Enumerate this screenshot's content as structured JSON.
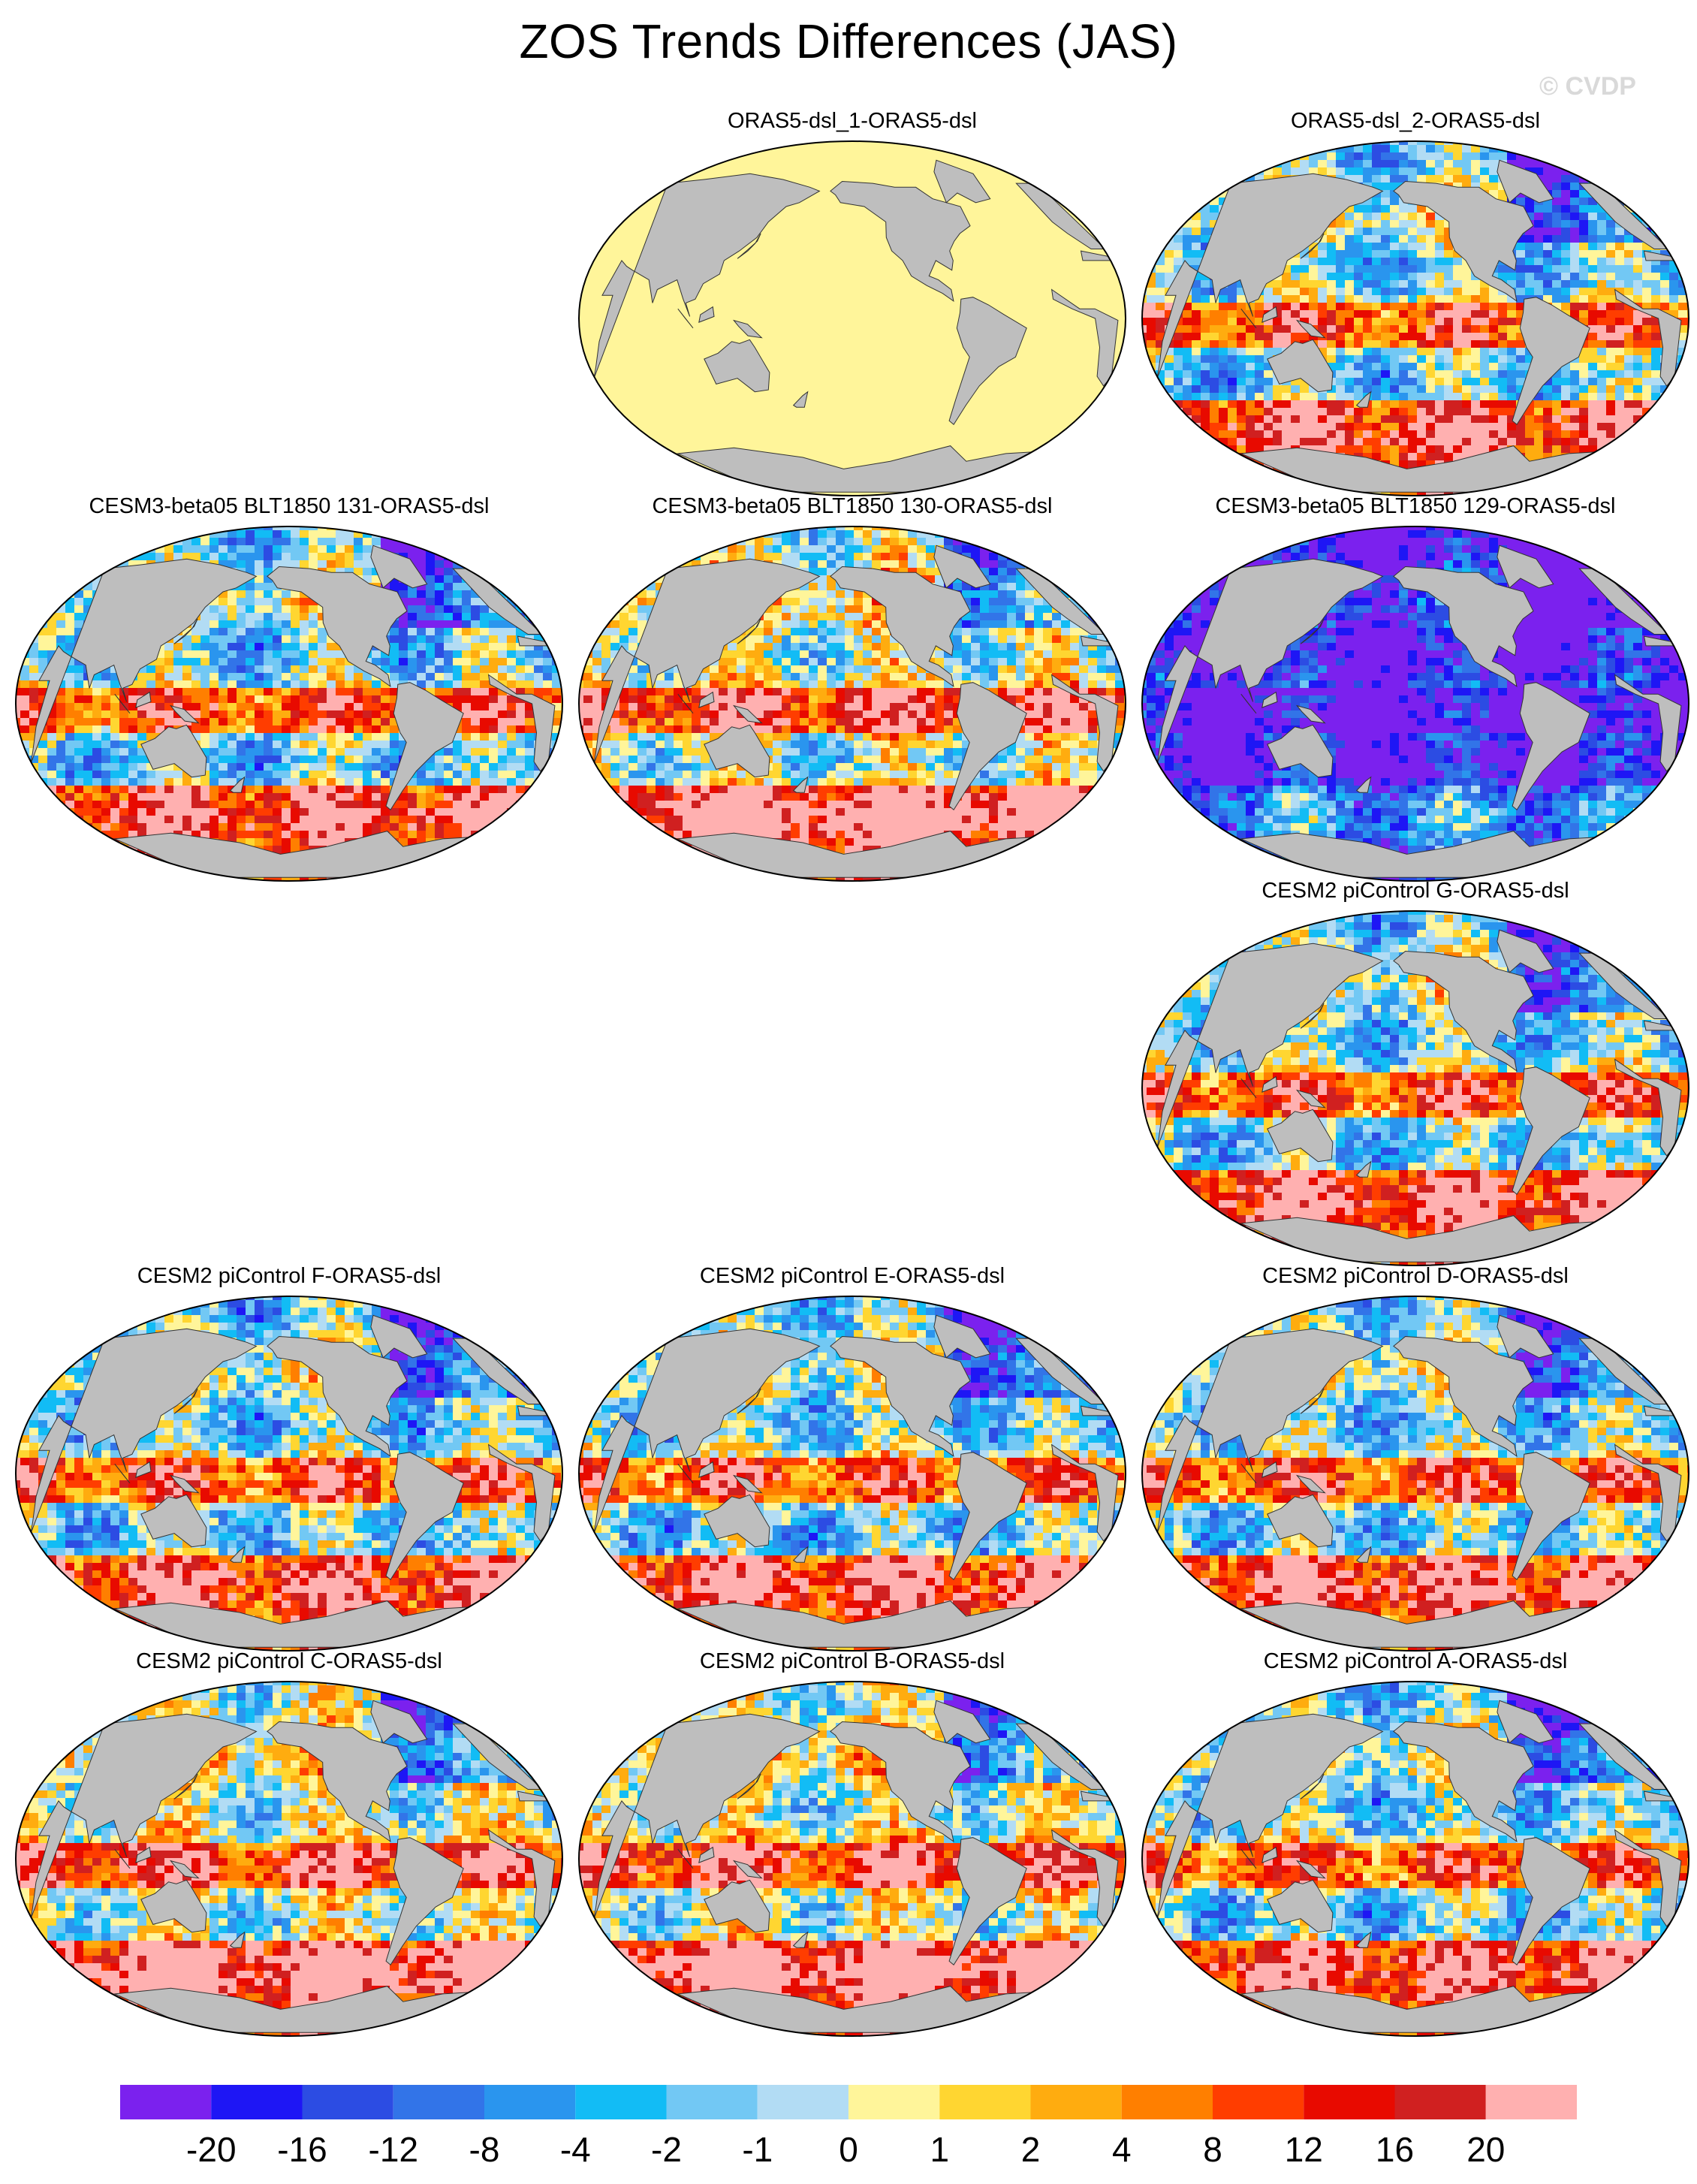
{
  "title": "ZOS Trends Differences (JAS)",
  "watermark": "© CVDP",
  "panels": [
    {
      "title": "ORAS5-dsl_1-ORAS5-dsl",
      "kind": "zero",
      "seed": 1
    },
    {
      "title": "ORAS5-dsl_2-ORAS5-dsl",
      "kind": "mixed",
      "seed": 2
    },
    {
      "title": "CESM3-beta05 BLT1850 131-ORAS5-dsl",
      "kind": "mixed",
      "seed": 3
    },
    {
      "title": "CESM3-beta05 BLT1850 130-ORAS5-dsl",
      "kind": "warm",
      "seed": 4
    },
    {
      "title": "CESM3-beta05 BLT1850 129-ORAS5-dsl",
      "kind": "cold",
      "seed": 5
    },
    {
      "title": "CESM2 piControl G-ORAS5-dsl",
      "kind": "mixed",
      "seed": 6
    },
    {
      "title": "CESM2 piControl F-ORAS5-dsl",
      "kind": "mixed",
      "seed": 7
    },
    {
      "title": "CESM2 piControl E-ORAS5-dsl",
      "kind": "mixed",
      "seed": 8
    },
    {
      "title": "CESM2 piControl D-ORAS5-dsl",
      "kind": "mixed",
      "seed": 9
    },
    {
      "title": "CESM2 piControl C-ORAS5-dsl",
      "kind": "warm",
      "seed": 10
    },
    {
      "title": "CESM2 piControl B-ORAS5-dsl",
      "kind": "warm",
      "seed": 11
    },
    {
      "title": "CESM2 piControl A-ORAS5-dsl",
      "kind": "mixed",
      "seed": 12
    }
  ],
  "colorbar": {
    "colors": [
      "#7b21ee",
      "#1e16f5",
      "#2c4ce3",
      "#3274e8",
      "#2a95ee",
      "#12bcf5",
      "#72c8f4",
      "#b2dcf4",
      "#fff59a",
      "#ffd631",
      "#ffac0f",
      "#ff7f00",
      "#ff3d00",
      "#e80a00",
      "#d02020",
      "#ffb0b0"
    ],
    "labels": [
      "-20",
      "-16",
      "-12",
      "-8",
      "-4",
      "-2",
      "-1",
      "0",
      "1",
      "2",
      "4",
      "8",
      "12",
      "16",
      "20"
    ]
  },
  "land_color": "#bebebe"
}
